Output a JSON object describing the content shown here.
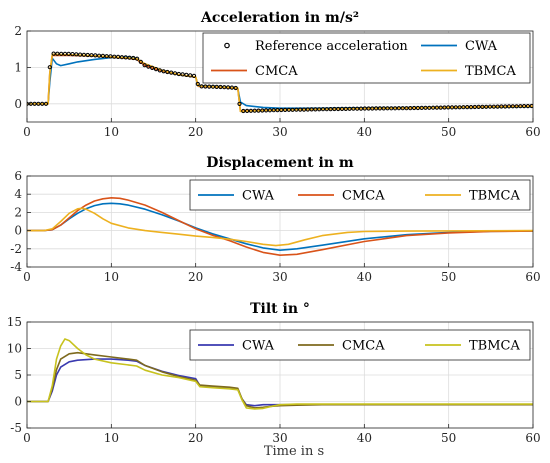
{
  "figure": {
    "xlabel": "Time in s"
  },
  "chart_data": [
    {
      "type": "line",
      "title": "Acceleration in m/s²",
      "xlabel": "",
      "ylabel": "",
      "xlim": [
        0,
        60
      ],
      "ylim": [
        -0.5,
        2
      ],
      "xticks": [
        0,
        10,
        20,
        30,
        40,
        50,
        60
      ],
      "yticks": [
        0,
        1,
        2
      ],
      "grid": true,
      "legend": {
        "placement": "top-right",
        "columns": 2
      },
      "series": [
        {
          "name": "Reference acceleration",
          "color": "#000000",
          "style": "markers",
          "x": [
            0,
            1,
            2,
            2.5,
            2.6,
            3,
            5,
            8,
            10,
            12,
            13,
            13.5,
            14,
            16,
            18,
            20,
            20.3,
            20.5,
            22,
            24,
            25,
            25.3,
            25.5,
            27,
            30,
            35,
            40,
            45,
            50,
            55,
            60
          ],
          "y": [
            0.0,
            0.0,
            0.0,
            0.0,
            0.88,
            1.38,
            1.37,
            1.33,
            1.3,
            1.27,
            1.25,
            1.15,
            1.05,
            0.9,
            0.82,
            0.76,
            0.5,
            0.48,
            0.47,
            0.45,
            0.43,
            -0.22,
            -0.2,
            -0.19,
            -0.17,
            -0.15,
            -0.13,
            -0.12,
            -0.1,
            -0.08,
            -0.06
          ]
        },
        {
          "name": "CWA",
          "color": "#0072bd",
          "x": [
            0,
            2.5,
            2.7,
            3,
            3.5,
            4,
            5,
            6,
            8,
            10,
            12,
            13,
            14,
            16,
            18,
            20,
            20.3,
            22,
            24,
            25,
            25.3,
            26,
            28,
            30,
            35,
            40,
            50,
            60
          ],
          "y": [
            0,
            0,
            0.6,
            1.25,
            1.1,
            1.05,
            1.1,
            1.15,
            1.22,
            1.27,
            1.28,
            1.25,
            1.05,
            0.9,
            0.8,
            0.73,
            0.5,
            0.48,
            0.45,
            0.42,
            0.05,
            -0.05,
            -0.1,
            -0.12,
            -0.12,
            -0.11,
            -0.1,
            -0.08
          ]
        },
        {
          "name": "CMCA",
          "color": "#d95319",
          "x": [
            0,
            2.5,
            2.7,
            3,
            5,
            8,
            10,
            12,
            13,
            14,
            16,
            18,
            20,
            20.3,
            22,
            24,
            25,
            25.3,
            26,
            30,
            40,
            50,
            60
          ],
          "y": [
            0,
            0,
            0.85,
            1.33,
            1.33,
            1.31,
            1.28,
            1.25,
            1.22,
            1.05,
            0.9,
            0.8,
            0.73,
            0.48,
            0.47,
            0.44,
            0.42,
            -0.2,
            -0.19,
            -0.17,
            -0.13,
            -0.1,
            -0.06
          ]
        },
        {
          "name": "TBMCA",
          "color": "#edb120",
          "x": [
            0,
            2.5,
            2.7,
            3,
            5,
            8,
            10,
            12,
            13,
            14,
            16,
            18,
            20,
            20.3,
            22,
            24,
            25,
            25.3,
            26,
            30,
            40,
            50,
            60
          ],
          "y": [
            0,
            0,
            0.85,
            1.36,
            1.35,
            1.32,
            1.29,
            1.26,
            1.24,
            1.1,
            0.92,
            0.8,
            0.74,
            0.49,
            0.47,
            0.45,
            0.43,
            -0.21,
            -0.2,
            -0.17,
            -0.13,
            -0.1,
            -0.07
          ]
        }
      ]
    },
    {
      "type": "line",
      "title": "Displacement in m",
      "xlabel": "",
      "ylabel": "",
      "xlim": [
        0,
        60
      ],
      "ylim": [
        -4,
        6
      ],
      "xticks": [
        0,
        10,
        20,
        30,
        40,
        50,
        60
      ],
      "yticks": [
        -4,
        -2,
        0,
        2,
        4,
        6
      ],
      "grid": true,
      "legend": {
        "placement": "top-right",
        "columns": 3
      },
      "series": [
        {
          "name": "CWA",
          "color": "#0072bd",
          "x": [
            0,
            2,
            3,
            4,
            5,
            6,
            7,
            8,
            9,
            10,
            11,
            12,
            14,
            16,
            18,
            20,
            22,
            24,
            26,
            28,
            30,
            32,
            35,
            40,
            45,
            50,
            55,
            60
          ],
          "y": [
            0,
            0,
            0.1,
            0.6,
            1.3,
            1.9,
            2.4,
            2.75,
            2.95,
            3.0,
            2.95,
            2.8,
            2.35,
            1.75,
            1.05,
            0.3,
            -0.35,
            -0.9,
            -1.45,
            -1.9,
            -2.15,
            -2.0,
            -1.6,
            -0.9,
            -0.45,
            -0.2,
            -0.08,
            -0.05
          ]
        },
        {
          "name": "CMCA",
          "color": "#d95319",
          "x": [
            0,
            2,
            3,
            4,
            5,
            6,
            7,
            8,
            9,
            10,
            11,
            12,
            14,
            16,
            18,
            20,
            22,
            24,
            26,
            28,
            30,
            32,
            35,
            40,
            45,
            50,
            55,
            60
          ],
          "y": [
            0,
            0,
            0.1,
            0.6,
            1.4,
            2.2,
            2.8,
            3.25,
            3.5,
            3.6,
            3.55,
            3.35,
            2.8,
            2.0,
            1.1,
            0.2,
            -0.5,
            -1.1,
            -1.8,
            -2.4,
            -2.7,
            -2.6,
            -2.1,
            -1.2,
            -0.55,
            -0.25,
            -0.1,
            -0.05
          ]
        },
        {
          "name": "TBMCA",
          "color": "#edb120",
          "x": [
            0,
            2,
            3,
            4,
            5,
            6,
            6.5,
            7,
            8,
            9,
            10,
            12,
            14,
            16,
            18,
            20,
            22,
            24,
            26,
            28,
            29.5,
            31,
            33,
            35,
            38,
            40,
            45,
            50,
            60
          ],
          "y": [
            0,
            0,
            0.2,
            1.0,
            1.9,
            2.4,
            2.45,
            2.35,
            1.9,
            1.3,
            0.8,
            0.3,
            0.0,
            -0.2,
            -0.4,
            -0.6,
            -0.75,
            -0.95,
            -1.2,
            -1.5,
            -1.65,
            -1.5,
            -1.0,
            -0.55,
            -0.2,
            -0.1,
            -0.05,
            -0.03,
            0
          ]
        }
      ]
    },
    {
      "type": "line",
      "title": "Tilt in °",
      "xlabel": "Time in s",
      "ylabel": "",
      "xlim": [
        0,
        60
      ],
      "ylim": [
        -5,
        15
      ],
      "xticks": [
        0,
        10,
        20,
        30,
        40,
        50,
        60
      ],
      "yticks": [
        -5,
        0,
        5,
        10,
        15
      ],
      "grid": true,
      "legend": {
        "placement": "top-right",
        "columns": 3
      },
      "series": [
        {
          "name": "CWA",
          "color": "#3a3ab0",
          "x": [
            0,
            2.5,
            3,
            3.5,
            4,
            5,
            6,
            8,
            10,
            12,
            13,
            14,
            16,
            18,
            20,
            20.5,
            22,
            24,
            25,
            25.5,
            26,
            27,
            28,
            29,
            30,
            32,
            35,
            40,
            50,
            60
          ],
          "y": [
            0,
            0,
            2,
            5,
            6.5,
            7.5,
            7.8,
            8.0,
            8.0,
            7.8,
            7.6,
            6.8,
            5.7,
            4.9,
            4.3,
            3.0,
            2.7,
            2.5,
            2.3,
            0.5,
            -0.6,
            -0.8,
            -0.6,
            -0.6,
            -0.6,
            -0.6,
            -0.6,
            -0.6,
            -0.6,
            -0.6
          ]
        },
        {
          "name": "CMCA",
          "color": "#7e6a1e",
          "x": [
            0,
            2.5,
            3,
            3.5,
            4,
            5,
            6,
            8,
            10,
            12,
            13,
            14,
            16,
            18,
            20,
            20.5,
            22,
            24,
            25,
            25.5,
            26,
            27,
            28,
            29,
            30,
            32,
            35,
            40,
            50,
            60
          ],
          "y": [
            0,
            0,
            2.5,
            6,
            8,
            9,
            9.2,
            8.8,
            8.4,
            8.0,
            7.8,
            6.8,
            5.6,
            4.7,
            4.0,
            3.1,
            2.9,
            2.7,
            2.5,
            0.5,
            -0.8,
            -1.2,
            -1.1,
            -0.9,
            -0.8,
            -0.7,
            -0.6,
            -0.6,
            -0.6,
            -0.6
          ]
        },
        {
          "name": "TBMCA",
          "color": "#c7c21e",
          "x": [
            0,
            2.5,
            3,
            3.5,
            4,
            4.5,
            5,
            6,
            7,
            8,
            10,
            12,
            13,
            14,
            16,
            18,
            20,
            20.5,
            22,
            24,
            25,
            25.5,
            26,
            27,
            28,
            29,
            30,
            32,
            35,
            40,
            50,
            60
          ],
          "y": [
            0,
            0,
            3,
            8,
            10.5,
            11.8,
            11.5,
            10.0,
            8.8,
            8.0,
            7.3,
            6.9,
            6.7,
            5.9,
            5.0,
            4.5,
            3.8,
            2.8,
            2.6,
            2.4,
            2.2,
            0.3,
            -1.2,
            -1.4,
            -1.3,
            -0.9,
            -0.6,
            -0.5,
            -0.5,
            -0.5,
            -0.5,
            -0.5
          ]
        }
      ]
    }
  ]
}
